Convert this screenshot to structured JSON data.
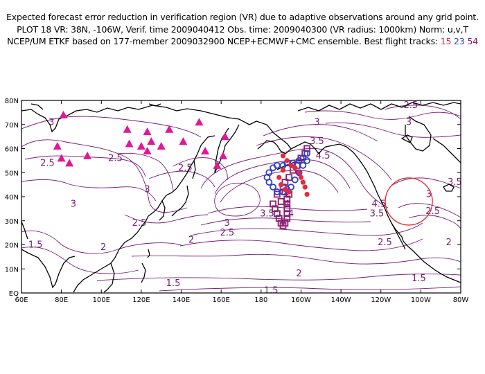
{
  "header": {
    "line1": "Expected forecast error reduction in verification region (VR) due to adaptive observations around any grid point.",
    "line2": "PLOT 18 VR: 38N, -106W, Verif. time 2009040412 Obs. time: 2009040300 (VR radius: 1000km) Norm: u,v,T",
    "line3_prefix": "NCEP/UM ETKF based on 177-member 2009032900 NCEP+ECMWF+CMC ensemble. Best flight tracks:",
    "tracks": [
      "15",
      "23",
      "54"
    ]
  },
  "colors": {
    "contour": "#7a1a7a",
    "track_15": "#e8283a",
    "track_23": "#2a3fd0",
    "track_54": "#8b1a6f",
    "triangles": "#e0179a",
    "verification_circle": "#e03030"
  },
  "map": {
    "lon_range": [
      60,
      280
    ],
    "lat_range": [
      0,
      80
    ],
    "lat_labels": [
      "EQ",
      "10N",
      "20N",
      "30N",
      "40N",
      "50N",
      "60N",
      "70N",
      "80N"
    ],
    "lon_labels": [
      "60E",
      "80E",
      "100E",
      "120E",
      "140E",
      "160E",
      "180",
      "160W",
      "140W",
      "120W",
      "100W",
      "80W"
    ],
    "contour_labels": [
      {
        "text": "3",
        "lon": 75,
        "lat": 71
      },
      {
        "text": "2.5",
        "lon": 73,
        "lat": 54
      },
      {
        "text": "2.5",
        "lon": 107,
        "lat": 56
      },
      {
        "text": "2.5",
        "lon": 142,
        "lat": 52
      },
      {
        "text": "3",
        "lon": 86,
        "lat": 37
      },
      {
        "text": "3",
        "lon": 123,
        "lat": 43
      },
      {
        "text": "2.5",
        "lon": 119,
        "lat": 29
      },
      {
        "text": "2",
        "lon": 101,
        "lat": 19
      },
      {
        "text": "1.5",
        "lon": 67,
        "lat": 20
      },
      {
        "text": "2",
        "lon": 145,
        "lat": 22
      },
      {
        "text": "2.5",
        "lon": 163,
        "lat": 25
      },
      {
        "text": "3",
        "lon": 163,
        "lat": 29
      },
      {
        "text": "3.5",
        "lon": 183,
        "lat": 33
      },
      {
        "text": "4",
        "lon": 193,
        "lat": 37
      },
      {
        "text": "4",
        "lon": 195,
        "lat": 33
      },
      {
        "text": "3",
        "lon": 208,
        "lat": 71
      },
      {
        "text": "3.5",
        "lon": 208,
        "lat": 63
      },
      {
        "text": "4.5",
        "lon": 211,
        "lat": 57
      },
      {
        "text": "4.5",
        "lon": 239,
        "lat": 37
      },
      {
        "text": "3.5",
        "lon": 238,
        "lat": 33
      },
      {
        "text": "2.5",
        "lon": 242,
        "lat": 21
      },
      {
        "text": "2.5",
        "lon": 255,
        "lat": 78
      },
      {
        "text": "3",
        "lon": 254,
        "lat": 71
      },
      {
        "text": "3",
        "lon": 264,
        "lat": 41
      },
      {
        "text": "3.5",
        "lon": 277,
        "lat": 46
      },
      {
        "text": "2.5",
        "lon": 266,
        "lat": 34
      },
      {
        "text": "2",
        "lon": 274,
        "lat": 21
      },
      {
        "text": "2",
        "lon": 199,
        "lat": 8
      },
      {
        "text": "1.5",
        "lon": 136,
        "lat": 4
      },
      {
        "text": "1.5",
        "lon": 185,
        "lat": 1
      },
      {
        "text": "1.5",
        "lon": 259,
        "lat": 6
      }
    ],
    "verification_circle": {
      "lat": 38,
      "lon": 254,
      "radius_km": 1000
    },
    "triangles": [
      {
        "lon": 81,
        "lat": 74
      },
      {
        "lon": 78,
        "lat": 61
      },
      {
        "lon": 80,
        "lat": 56
      },
      {
        "lon": 84,
        "lat": 54
      },
      {
        "lon": 93,
        "lat": 57
      },
      {
        "lon": 113,
        "lat": 68
      },
      {
        "lon": 114,
        "lat": 62
      },
      {
        "lon": 120,
        "lat": 61
      },
      {
        "lon": 123,
        "lat": 67
      },
      {
        "lon": 125,
        "lat": 63
      },
      {
        "lon": 123,
        "lat": 59
      },
      {
        "lon": 130,
        "lat": 61
      },
      {
        "lon": 134,
        "lat": 68
      },
      {
        "lon": 141,
        "lat": 63
      },
      {
        "lon": 149,
        "lat": 71
      },
      {
        "lon": 152,
        "lat": 59
      },
      {
        "lon": 158,
        "lat": 53
      },
      {
        "lon": 161,
        "lat": 57
      },
      {
        "lon": 162,
        "lat": 65
      }
    ],
    "track_15": [
      {
        "lon": 191,
        "lat": 57
      },
      {
        "lon": 193,
        "lat": 55
      },
      {
        "lon": 195,
        "lat": 53
      },
      {
        "lon": 197,
        "lat": 52
      },
      {
        "lon": 199,
        "lat": 50
      },
      {
        "lon": 200,
        "lat": 48
      },
      {
        "lon": 201,
        "lat": 46
      },
      {
        "lon": 202,
        "lat": 44
      },
      {
        "lon": 203,
        "lat": 41
      },
      {
        "lon": 191,
        "lat": 51
      },
      {
        "lon": 189,
        "lat": 48
      },
      {
        "lon": 190,
        "lat": 45
      },
      {
        "lon": 192,
        "lat": 43
      },
      {
        "lon": 194,
        "lat": 42
      }
    ],
    "track_23": [
      {
        "lon": 203,
        "lat": 58
      },
      {
        "lon": 201,
        "lat": 56
      },
      {
        "lon": 199,
        "lat": 55
      },
      {
        "lon": 196,
        "lat": 54
      },
      {
        "lon": 193,
        "lat": 54
      },
      {
        "lon": 191,
        "lat": 53
      },
      {
        "lon": 188,
        "lat": 53
      },
      {
        "lon": 186,
        "lat": 52
      },
      {
        "lon": 184,
        "lat": 50
      },
      {
        "lon": 183,
        "lat": 48
      },
      {
        "lon": 184,
        "lat": 46
      },
      {
        "lon": 186,
        "lat": 44
      },
      {
        "lon": 188,
        "lat": 42
      },
      {
        "lon": 191,
        "lat": 42
      },
      {
        "lon": 193,
        "lat": 43
      },
      {
        "lon": 195,
        "lat": 44
      },
      {
        "lon": 197,
        "lat": 47
      },
      {
        "lon": 199,
        "lat": 50
      },
      {
        "lon": 201,
        "lat": 53
      },
      {
        "lon": 203,
        "lat": 55
      }
    ],
    "track_54": [
      {
        "lon": 203,
        "lat": 60
      },
      {
        "lon": 202,
        "lat": 58
      },
      {
        "lon": 200,
        "lat": 56
      },
      {
        "lon": 198,
        "lat": 53
      },
      {
        "lon": 196,
        "lat": 51
      },
      {
        "lon": 194,
        "lat": 48
      },
      {
        "lon": 192,
        "lat": 46
      },
      {
        "lon": 191,
        "lat": 44
      },
      {
        "lon": 192,
        "lat": 42
      },
      {
        "lon": 193,
        "lat": 39
      },
      {
        "lon": 193,
        "lat": 37
      },
      {
        "lon": 193,
        "lat": 35
      },
      {
        "lon": 193,
        "lat": 33
      },
      {
        "lon": 193,
        "lat": 31
      },
      {
        "lon": 192,
        "lat": 29
      },
      {
        "lon": 191,
        "lat": 28
      },
      {
        "lon": 190,
        "lat": 29
      },
      {
        "lon": 189,
        "lat": 31
      },
      {
        "lon": 188,
        "lat": 33
      },
      {
        "lon": 187,
        "lat": 35
      },
      {
        "lon": 186,
        "lat": 37
      },
      {
        "lon": 188,
        "lat": 41
      },
      {
        "lon": 190,
        "lat": 38
      },
      {
        "lon": 194,
        "lat": 41
      }
    ]
  }
}
